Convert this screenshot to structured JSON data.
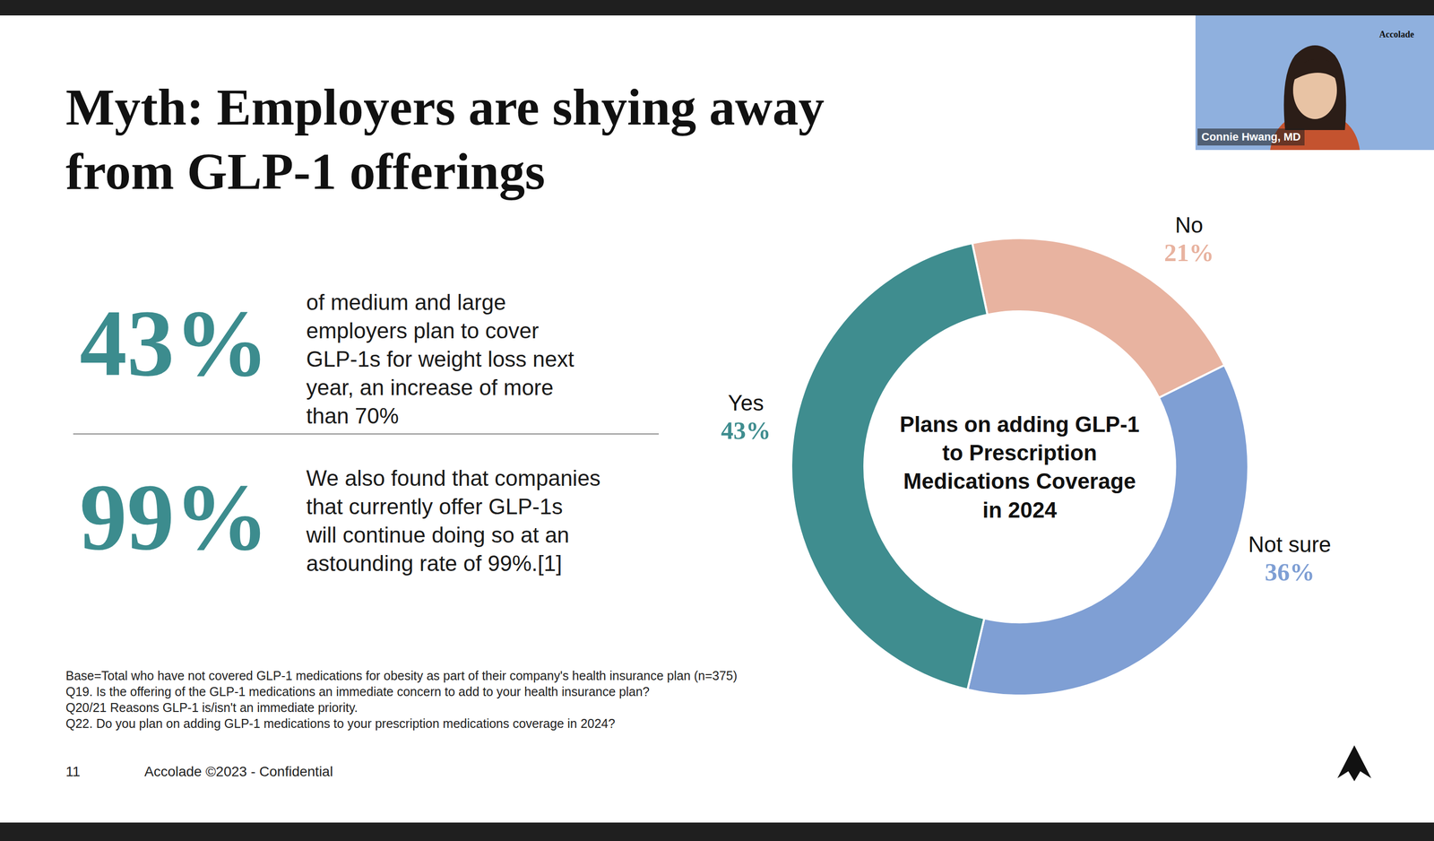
{
  "slide": {
    "title": "Myth: Employers are shying away from GLP-1 offerings",
    "stats": [
      {
        "value": "43%",
        "text": "of medium and large employers plan to cover GLP-1s for weight loss next year, an increase of more than 70%"
      },
      {
        "value": "99%",
        "text": "We also found that companies that currently offer GLP-1s will continue doing so at an astounding rate of 99%.[1]"
      }
    ],
    "footnotes": [
      "Base=Total who have not covered GLP-1 medications for obesity as part of their company's health insurance plan (n=375)",
      "Q19. Is the offering of the GLP-1 medications an immediate concern to add to your health insurance plan?",
      "Q20/21 Reasons GLP-1 is/isn't an immediate priority.",
      "Q22. Do you plan on adding GLP-1 medications to your prescription medications coverage in 2024?"
    ],
    "page_number": "11",
    "footer": "Accolade ©2023 - Confidential",
    "video": {
      "speaker": "Connie Hwang, MD",
      "logo": "Accolade"
    }
  },
  "chart_data": {
    "type": "pie",
    "title": "Plans on adding GLP-1 to Prescription Medications Coverage in 2024",
    "categories": [
      "No",
      "Not sure",
      "Yes"
    ],
    "values": [
      21,
      36,
      43
    ],
    "value_labels": [
      "21%",
      "36%",
      "43%"
    ],
    "colors": [
      "#e8b3a0",
      "#7f9fd4",
      "#3f8d8f"
    ],
    "data_labels": true
  }
}
